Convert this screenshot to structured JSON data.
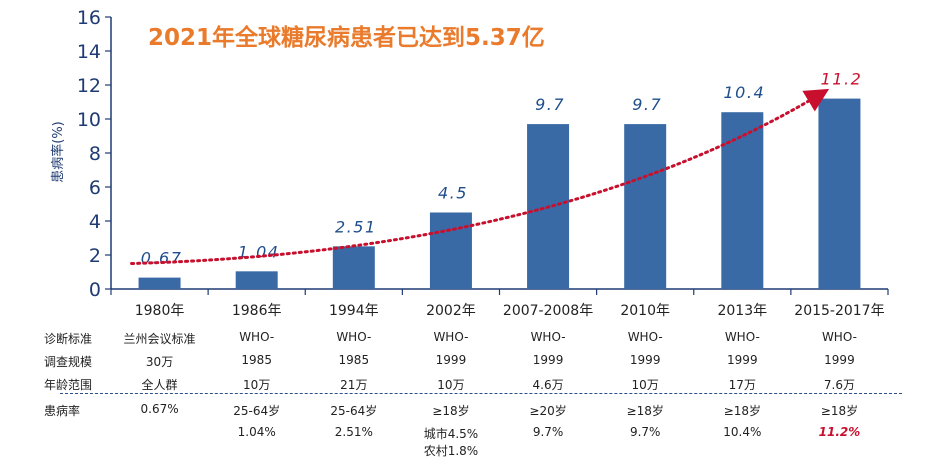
{
  "colors": {
    "bar": "#3a6aa5",
    "axis": "#1f3b73",
    "title": "#ea7b2c",
    "trend": "#c8102e",
    "value_label": "#1f4e8c",
    "highlight": "#c8102e"
  },
  "chart_data": {
    "type": "bar",
    "title": "2021年全球糖尿病患者已达到5.37亿",
    "ylabel": "患病率(%)",
    "xlabel": "",
    "ylim": [
      0,
      16
    ],
    "yticks": [
      "0",
      "2",
      "4",
      "6",
      "8",
      "10",
      "12",
      "14",
      "16"
    ],
    "grid": false,
    "categories": [
      "1980年",
      "1986年",
      "1994年",
      "2002年",
      "2007-2008年",
      "2010年",
      "2013年",
      "2015-2017年"
    ],
    "values": [
      0.67,
      1.04,
      2.51,
      4.5,
      9.7,
      9.7,
      10.4,
      11.2
    ],
    "value_labels": [
      "0.67",
      "1.04",
      "2.51",
      "4.5",
      "9.7",
      "9.7",
      "10.4",
      "11.2"
    ],
    "trend_line": "dotted-arrow"
  },
  "table": {
    "row_labels": [
      "诊断标准",
      "调查规模",
      "年龄范围",
      "患病率"
    ],
    "diagnosis_line1": [
      "兰州会议标准",
      "WHO-",
      "WHO-",
      "WHO-",
      "WHO-",
      "WHO-",
      "WHO-",
      "WHO-"
    ],
    "scale": [
      "30万",
      "1985",
      "1985",
      "1999",
      "1999",
      "1999",
      "1999",
      "1999"
    ],
    "age_range": [
      "全人群",
      "10万",
      "21万",
      "10万",
      "4.6万",
      "10万",
      "17万",
      "7.6万"
    ],
    "prevalence_line1": [
      "0.67%",
      "25-64岁",
      "25-64岁",
      "≥18岁",
      "≥20岁",
      "≥18岁",
      "≥18岁",
      "≥18岁"
    ],
    "prevalence_line2": [
      "",
      "1.04%",
      "2.51%",
      "城市4.5%",
      "9.7%",
      "9.7%",
      "10.4%",
      "11.2%"
    ],
    "prevalence_line3": [
      "",
      "",
      "",
      "农村1.8%",
      "",
      "",
      "",
      ""
    ]
  }
}
